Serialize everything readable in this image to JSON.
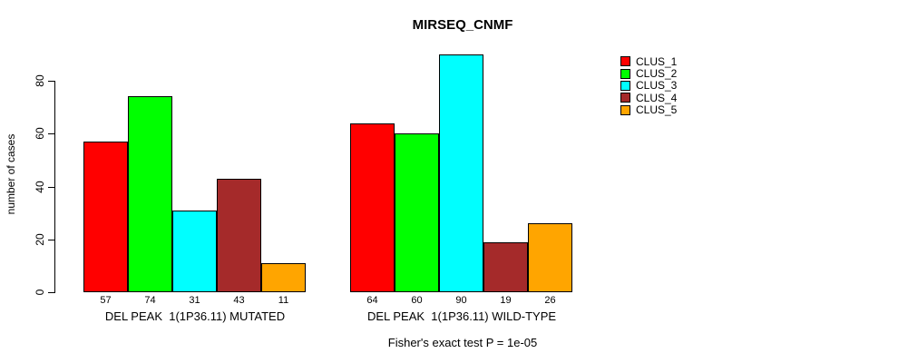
{
  "chart_data": {
    "type": "bar",
    "title": "MIRSEQ_CNMF",
    "subtitle": "Fisher's exact test P = 1e-05",
    "ylabel": "number of cases",
    "yticks": [
      0,
      20,
      40,
      60,
      80
    ],
    "ylim": [
      0,
      90
    ],
    "grid": false,
    "legend_position": "right",
    "bar_border_color": "#000000",
    "background_color": "#ffffff",
    "categories": [
      "DEL PEAK  1(1P36.11) MUTATED",
      "DEL PEAK  1(1P36.11) WILD-TYPE"
    ],
    "groups": [
      {
        "label": "DEL PEAK  1(1P36.11) MUTATED",
        "values": [
          57,
          74,
          31,
          43,
          11
        ]
      },
      {
        "label": "DEL PEAK  1(1P36.11) WILD-TYPE",
        "values": [
          64,
          60,
          90,
          19,
          26
        ]
      }
    ],
    "series": [
      {
        "name": "CLUS_1",
        "color": "#ff0000",
        "values": [
          57,
          64
        ]
      },
      {
        "name": "CLUS_2",
        "color": "#00ff00",
        "values": [
          74,
          60
        ]
      },
      {
        "name": "CLUS_3",
        "color": "#00ffff",
        "values": [
          31,
          90
        ]
      },
      {
        "name": "CLUS_4",
        "color": "#a52a2a",
        "values": [
          43,
          19
        ]
      },
      {
        "name": "CLUS_5",
        "color": "#ffa500",
        "values": [
          11,
          26
        ]
      }
    ]
  }
}
